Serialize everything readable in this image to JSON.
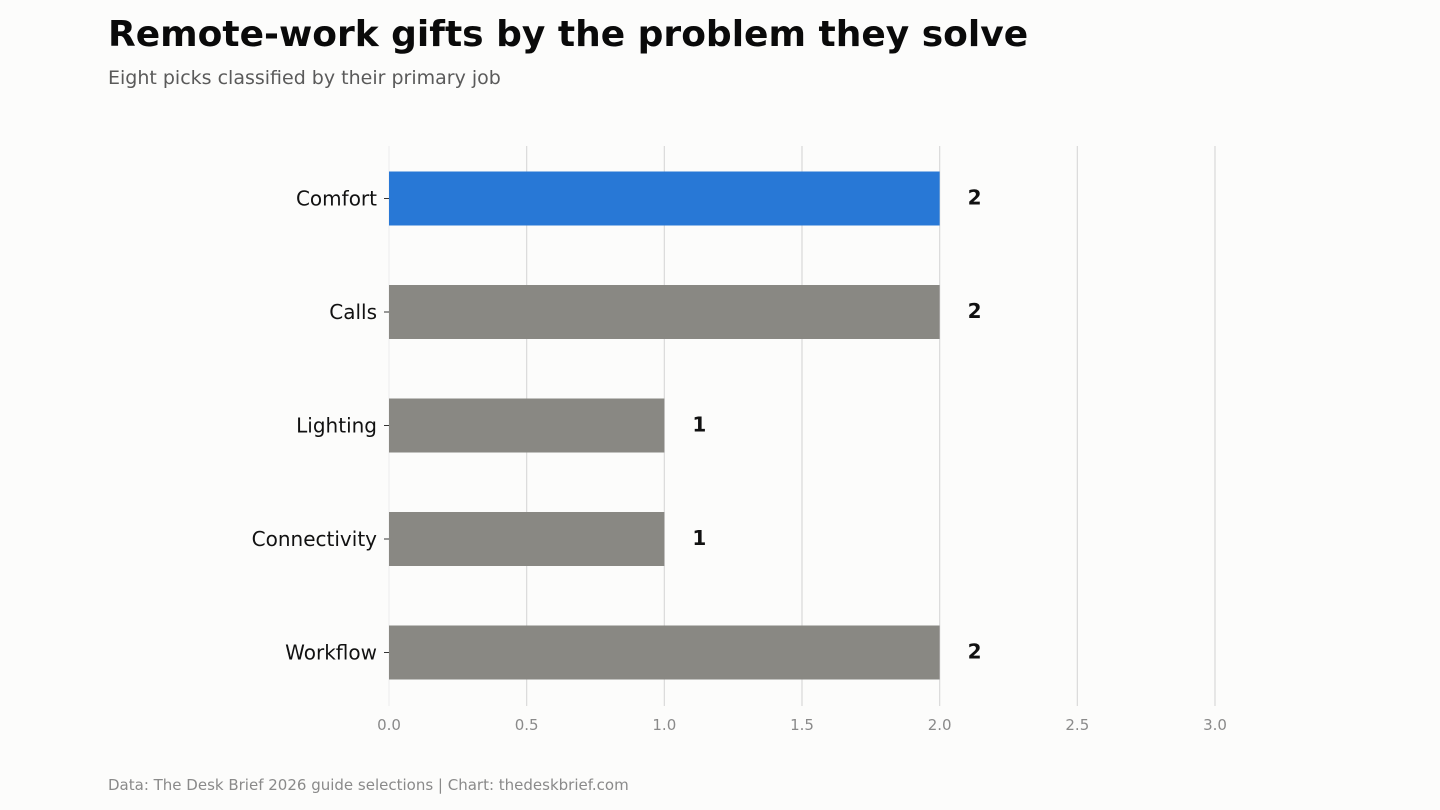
{
  "title": "Remote-work gifts by the problem they solve",
  "subtitle": "Eight picks classified by their primary job",
  "footer": "Data: The Desk Brief 2026 guide selections | Chart: thedeskbrief.com",
  "colors": {
    "highlight": "#2878d6",
    "default": "#898883",
    "grid": "#d9d9d9",
    "tick_text": "#8a8a8a",
    "label_text": "#111111"
  },
  "chart_data": {
    "type": "bar",
    "orientation": "horizontal",
    "categories": [
      "Comfort",
      "Calls",
      "Lighting",
      "Connectivity",
      "Workflow"
    ],
    "values": [
      2,
      2,
      1,
      1,
      2
    ],
    "highlight_category": "Comfort",
    "xlim": [
      0,
      3
    ],
    "xticks": [
      "0.0",
      "0.5",
      "1.0",
      "1.5",
      "2.0",
      "2.5",
      "3.0"
    ],
    "xtick_values": [
      0,
      0.5,
      1,
      1.5,
      2,
      2.5,
      3
    ],
    "grid": "vertical",
    "xlabel": "",
    "ylabel": ""
  }
}
